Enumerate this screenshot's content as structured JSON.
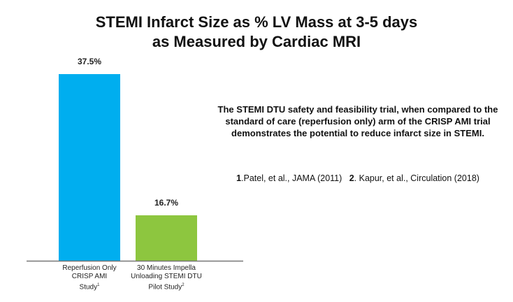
{
  "chart_data": {
    "type": "bar",
    "title": [
      "STEMI Infarct Size as % LV Mass at 3-5 days",
      "as Measured by Cardiac MRI"
    ],
    "categories": [
      {
        "lines": [
          "Reperfusion Only",
          "CRISP AMI",
          "Study"
        ],
        "sup": "1"
      },
      {
        "lines": [
          "30 Minutes Impella",
          "Unloading STEMI DTU",
          "Pilot Study"
        ],
        "sup": "2"
      }
    ],
    "values": [
      37.5,
      16.7
    ],
    "data_labels": [
      "37.5%",
      "16.7%"
    ],
    "colors": [
      "#00aeef",
      "#8dc63f"
    ],
    "xlabel": "",
    "ylabel": "",
    "grid": false
  },
  "annotation": "The STEMI DTU safety and feasibility trial, when compared to the standard of care (reperfusion only) arm of the CRISP AMI trial demonstrates the potential to reduce infarct size in STEMI.",
  "references": [
    {
      "num": "1",
      "text": ".Patel, et al., JAMA (2011)"
    },
    {
      "num": "2",
      "text": ". Kapur, et al., Circulation (2018)"
    }
  ]
}
